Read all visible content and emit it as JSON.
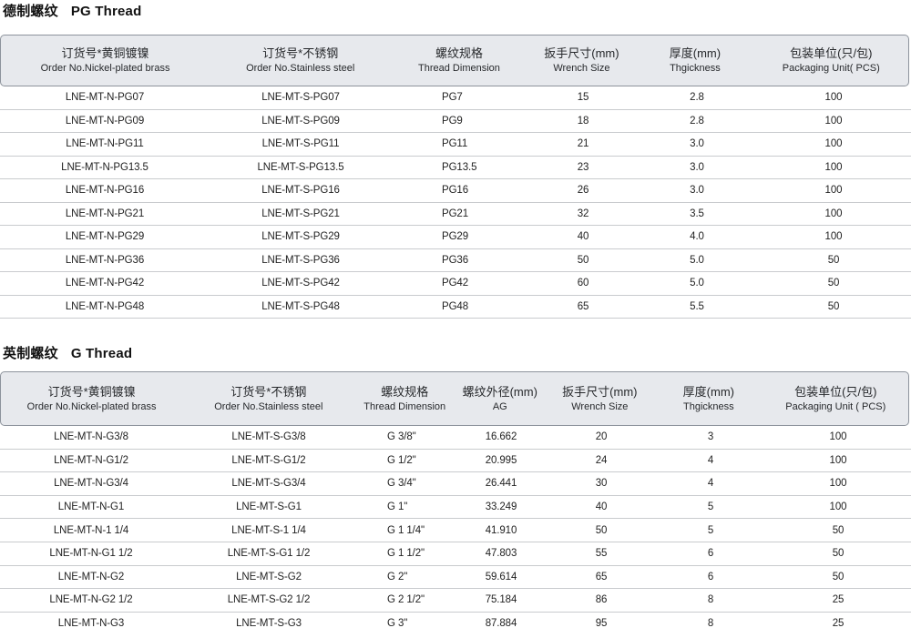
{
  "page": {
    "background": "#ffffff",
    "header_bg": "#e7e9ed",
    "header_border": "#8d939c",
    "row_divider": "#c9cbce",
    "text_color": "#1d1d1f"
  },
  "sections": [
    {
      "title_cn": "德制螺纹",
      "title_en": "PG Thread",
      "columns": [
        {
          "cn": "订货号*黄铜镀镍",
          "en": "Order No.Nickel-plated brass"
        },
        {
          "cn": "订货号*不锈钢",
          "en": "Order No.Stainless steel"
        },
        {
          "cn": "螺纹规格",
          "en": "Thread Dimension"
        },
        {
          "cn": "扳手尺寸(mm)",
          "en": "Wrench Size"
        },
        {
          "cn": "厚度(mm)",
          "en": "Thgickness"
        },
        {
          "cn": "包装单位(只/包)",
          "en": "Packaging Unit( PCS)"
        }
      ],
      "rows": [
        [
          "LNE-MT-N-PG07",
          "LNE-MT-S-PG07",
          "PG7",
          "15",
          "2.8",
          "100"
        ],
        [
          "LNE-MT-N-PG09",
          "LNE-MT-S-PG09",
          "PG9",
          "18",
          "2.8",
          "100"
        ],
        [
          "LNE-MT-N-PG11",
          "LNE-MT-S-PG11",
          "PG11",
          "21",
          "3.0",
          "100"
        ],
        [
          "LNE-MT-N-PG13.5",
          "LNE-MT-S-PG13.5",
          "PG13.5",
          "23",
          "3.0",
          "100"
        ],
        [
          "LNE-MT-N-PG16",
          "LNE-MT-S-PG16",
          "PG16",
          "26",
          "3.0",
          "100"
        ],
        [
          "LNE-MT-N-PG21",
          "LNE-MT-S-PG21",
          "PG21",
          "32",
          "3.5",
          "100"
        ],
        [
          "LNE-MT-N-PG29",
          "LNE-MT-S-PG29",
          "PG29",
          "40",
          "4.0",
          "100"
        ],
        [
          "LNE-MT-N-PG36",
          "LNE-MT-S-PG36",
          "PG36",
          "50",
          "5.0",
          "50"
        ],
        [
          "LNE-MT-N-PG42",
          "LNE-MT-S-PG42",
          "PG42",
          "60",
          "5.0",
          "50"
        ],
        [
          "LNE-MT-N-PG48",
          "LNE-MT-S-PG48",
          "PG48",
          "65",
          "5.5",
          "50"
        ]
      ]
    },
    {
      "title_cn": "英制螺纹",
      "title_en": "G Thread",
      "columns": [
        {
          "cn": "订货号*黄铜镀镍",
          "en": "Order No.Nickel-plated brass"
        },
        {
          "cn": "订货号*不锈钢",
          "en": "Order No.Stainless steel"
        },
        {
          "cn": "螺纹规格",
          "en": "Thread Dimension"
        },
        {
          "cn": "螺纹外径(mm)",
          "en": "AG"
        },
        {
          "cn": "扳手尺寸(mm)",
          "en": "Wrench Size"
        },
        {
          "cn": "厚度(mm)",
          "en": "Thgickness"
        },
        {
          "cn": "包装单位(只/包)",
          "en": "Packaging Unit ( PCS)"
        }
      ],
      "rows": [
        [
          "LNE-MT-N-G3/8",
          "LNE-MT-S-G3/8",
          "G 3/8\"",
          "16.662",
          "20",
          "3",
          "100"
        ],
        [
          "LNE-MT-N-G1/2",
          "LNE-MT-S-G1/2",
          "G 1/2\"",
          "20.995",
          "24",
          "4",
          "100"
        ],
        [
          "LNE-MT-N-G3/4",
          "LNE-MT-S-G3/4",
          "G 3/4\"",
          "26.441",
          "30",
          "4",
          "100"
        ],
        [
          "LNE-MT-N-G1",
          "LNE-MT-S-G1",
          "G 1\"",
          "33.249",
          "40",
          "5",
          "100"
        ],
        [
          "LNE-MT-N-1 1/4",
          "LNE-MT-S-1 1/4",
          "G 1 1/4\"",
          "41.910",
          "50",
          "5",
          "50"
        ],
        [
          "LNE-MT-N-G1 1/2",
          "LNE-MT-S-G1 1/2",
          "G 1 1/2\"",
          "47.803",
          "55",
          "6",
          "50"
        ],
        [
          "LNE-MT-N-G2",
          "LNE-MT-S-G2",
          "G 2\"",
          "59.614",
          "65",
          "6",
          "50"
        ],
        [
          "LNE-MT-N-G2 1/2",
          "LNE-MT-S-G2 1/2",
          "G 2 1/2\"",
          "75.184",
          "86",
          "8",
          "25"
        ],
        [
          "LNE-MT-N-G3",
          "LNE-MT-S-G3",
          "G 3\"",
          "87.884",
          "95",
          "8",
          "25"
        ]
      ]
    }
  ]
}
